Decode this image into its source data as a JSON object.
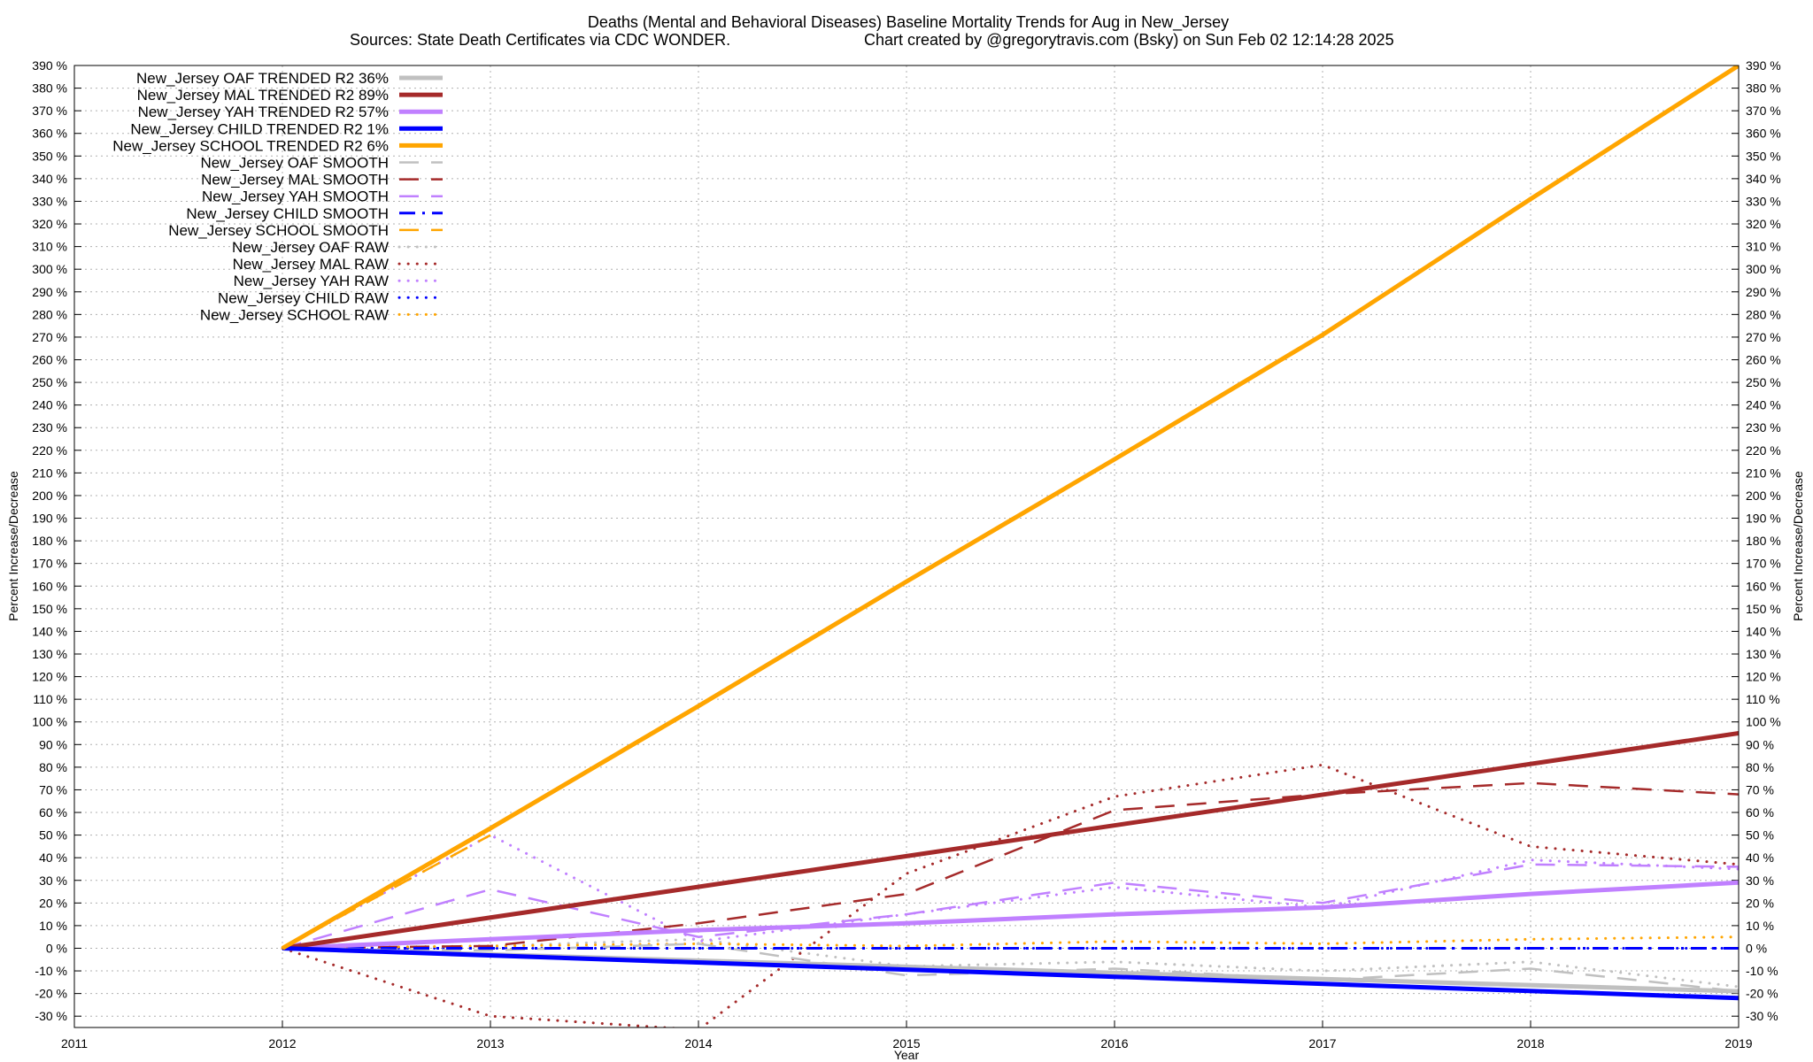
{
  "chart_data": {
    "type": "line",
    "title": "Deaths (Mental and Behavioral Diseases)  Baseline Mortality Trends for Aug in New_Jersey",
    "subtitle_left": "Sources: State Death Certificates via CDC WONDER.",
    "subtitle_right": "Chart created by @gregorytravis.com (Bsky) on Sun Feb 02 12:14:28 2025",
    "xlabel": "Year",
    "ylabel": "Percent Increase/Decrease",
    "y2label": "Percent Increase/Decrease",
    "xlim": [
      2011,
      2019
    ],
    "ylim": [
      -35,
      390
    ],
    "x_ticks": [
      2011,
      2012,
      2013,
      2014,
      2015,
      2016,
      2017,
      2018,
      2019
    ],
    "y_ticks": [
      -30,
      -20,
      -10,
      0,
      10,
      20,
      30,
      40,
      50,
      60,
      70,
      80,
      90,
      100,
      110,
      120,
      130,
      140,
      150,
      160,
      170,
      180,
      190,
      200,
      210,
      220,
      230,
      240,
      250,
      260,
      270,
      280,
      290,
      300,
      310,
      320,
      330,
      340,
      350,
      360,
      370,
      380,
      390
    ],
    "y_tick_suffix": " %",
    "grid": true,
    "legend_position": "top-left",
    "series": [
      {
        "name": "New_Jersey OAF TRENDED R2  36%",
        "style": "solid",
        "color": "#c0c0c0",
        "x": [
          2012,
          2019
        ],
        "y": [
          0,
          -19
        ]
      },
      {
        "name": "New_Jersey MAL TRENDED R2  89%",
        "style": "solid",
        "color": "#a52a2a",
        "x": [
          2012,
          2019
        ],
        "y": [
          0,
          95
        ]
      },
      {
        "name": "New_Jersey YAH TRENDED R2  57%",
        "style": "solid",
        "color": "#c080ff",
        "x": [
          2012,
          2013,
          2014,
          2015,
          2016,
          2017,
          2018,
          2019
        ],
        "y": [
          0,
          4,
          8,
          11,
          15,
          18,
          24,
          29
        ]
      },
      {
        "name": "New_Jersey CHILD TRENDED R2  1%",
        "style": "solid",
        "color": "#0000ff",
        "x": [
          2012,
          2019
        ],
        "y": [
          0,
          -22
        ]
      },
      {
        "name": "New_Jersey SCHOOL TRENDED R2  6%",
        "style": "solid",
        "color": "#ffa500",
        "x": [
          2012,
          2013,
          2014,
          2015,
          2016,
          2017,
          2018,
          2019
        ],
        "y": [
          0,
          53,
          107,
          162,
          216,
          271,
          331,
          390
        ]
      },
      {
        "name": "New_Jersey OAF SMOOTH",
        "style": "dashed",
        "color": "#c0c0c0",
        "x": [
          2012,
          2013,
          2014,
          2015,
          2016,
          2017,
          2018,
          2019
        ],
        "y": [
          0,
          -1,
          2,
          -12,
          -9,
          -14,
          -9,
          -19
        ]
      },
      {
        "name": "New_Jersey MAL SMOOTH",
        "style": "dashed",
        "color": "#a52a2a",
        "x": [
          2012,
          2013,
          2014,
          2015,
          2016,
          2017,
          2018,
          2019
        ],
        "y": [
          0,
          1,
          11,
          24,
          61,
          68,
          73,
          68
        ]
      },
      {
        "name": "New_Jersey YAH SMOOTH",
        "style": "dashed",
        "color": "#c080ff",
        "x": [
          2012,
          2013,
          2014,
          2015,
          2016,
          2017,
          2018,
          2019
        ],
        "y": [
          0,
          26,
          5,
          15,
          29,
          20,
          37,
          36
        ]
      },
      {
        "name": "New_Jersey CHILD SMOOTH",
        "style": "dashdot",
        "color": "#0000ff",
        "x": [
          2012,
          2013,
          2014,
          2015,
          2016,
          2017,
          2018,
          2019
        ],
        "y": [
          0,
          0,
          0,
          0,
          0,
          0,
          0,
          0
        ]
      },
      {
        "name": "New_Jersey SCHOOL SMOOTH",
        "style": "dashed",
        "color": "#ffa500",
        "x": [
          2012,
          2013
        ],
        "y": [
          0,
          50
        ]
      },
      {
        "name": "New_Jersey OAF RAW",
        "style": "dotted",
        "color": "#c0c0c0",
        "x": [
          2012,
          2013,
          2014,
          2015,
          2016,
          2017,
          2018,
          2019
        ],
        "y": [
          0,
          1,
          4,
          -8,
          -6,
          -10,
          -6,
          -17
        ]
      },
      {
        "name": "New_Jersey MAL RAW",
        "style": "dotted",
        "color": "#a52a2a",
        "x": [
          2012,
          2013,
          2014,
          2015,
          2016,
          2017,
          2018,
          2019
        ],
        "y": [
          0,
          -30,
          -36,
          33,
          67,
          81,
          45,
          37
        ]
      },
      {
        "name": "New_Jersey YAH RAW",
        "style": "dotted",
        "color": "#c080ff",
        "x": [
          2012,
          2013,
          2014,
          2015,
          2016,
          2017,
          2018,
          2019
        ],
        "y": [
          0,
          50,
          3,
          15,
          27,
          18,
          39,
          35
        ]
      },
      {
        "name": "New_Jersey CHILD RAW",
        "style": "dotted",
        "color": "#0000ff",
        "x": [
          2012,
          2013,
          2014,
          2015,
          2016,
          2017,
          2018,
          2019
        ],
        "y": [
          0,
          0,
          0,
          0,
          0,
          0,
          0,
          0
        ]
      },
      {
        "name": "New_Jersey SCHOOL RAW",
        "style": "dotted",
        "color": "#ffa500",
        "x": [
          2012,
          2013,
          2014,
          2015,
          2016,
          2017,
          2018,
          2019
        ],
        "y": [
          0,
          1,
          2,
          1,
          3,
          2,
          4,
          5
        ]
      }
    ]
  }
}
